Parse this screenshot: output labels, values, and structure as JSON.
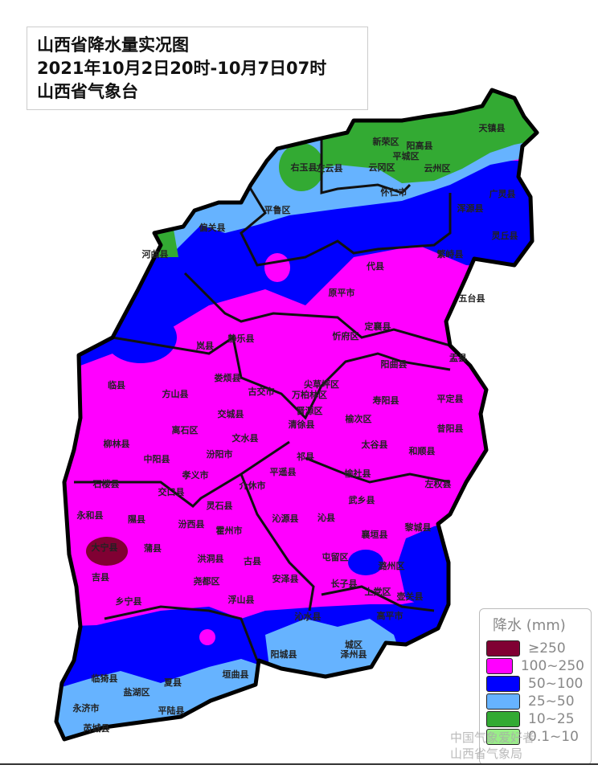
{
  "title": {
    "line1": "山西省降水量实况图",
    "line2": "2021年10月2日20时-10月7日07时",
    "line3": "山西省气象台"
  },
  "legend": {
    "title": "降水 (mm)",
    "items": [
      {
        "label": "≥250",
        "color": "#800033"
      },
      {
        "label": "100~250",
        "color": "#ff00ff"
      },
      {
        "label": "50~100",
        "color": "#0000ff"
      },
      {
        "label": "25~50",
        "color": "#66b3ff"
      },
      {
        "label": "10~25",
        "color": "#33aa33"
      },
      {
        "label": "0.1~10",
        "color": "#99ee88"
      }
    ]
  },
  "counties": [
    "天镇县",
    "新荣区",
    "阳高县",
    "平城区",
    "云冈区",
    "云州区",
    "右玉县",
    "左云县",
    "怀仁市",
    "平鲁区",
    "偏关县",
    "河曲县",
    "广灵县",
    "浑源县",
    "灵丘县",
    "繁峙县",
    "代县",
    "原平市",
    "五台县",
    "定襄县",
    "忻府区",
    "静乐县",
    "岚县",
    "阳曲县",
    "盂县",
    "娄烦县",
    "古交市",
    "尖草坪区",
    "万柏林区",
    "晋源区",
    "清徐县",
    "寿阳县",
    "平定县",
    "榆次区",
    "昔阳县",
    "临县",
    "方山县",
    "交城县",
    "离石区",
    "文水县",
    "柳林县",
    "中阳县",
    "汾阳市",
    "孝义市",
    "太谷县",
    "祁县",
    "和顺县",
    "平遥县",
    "榆社县",
    "左权县",
    "石楼县",
    "交口县",
    "介休市",
    "灵石县",
    "武乡县",
    "永和县",
    "隰县",
    "汾西县",
    "霍州市",
    "沁源县",
    "沁县",
    "襄垣县",
    "黎城县",
    "大宁县",
    "蒲县",
    "洪洞县",
    "古县",
    "屯留区",
    "潞州区",
    "吉县",
    "尧都区",
    "安泽县",
    "长子县",
    "上党区",
    "壶关县",
    "乡宁县",
    "浮山县",
    "沁水县",
    "高平市",
    "阳城县",
    "城区",
    "泽州县",
    "垣曲县",
    "夏县",
    "平陆县",
    "永济市",
    "芮城县",
    "盐湖区",
    "临猗县"
  ],
  "watermark": {
    "line1": "中国气象爱好者",
    "line2": "山西省气象局"
  }
}
